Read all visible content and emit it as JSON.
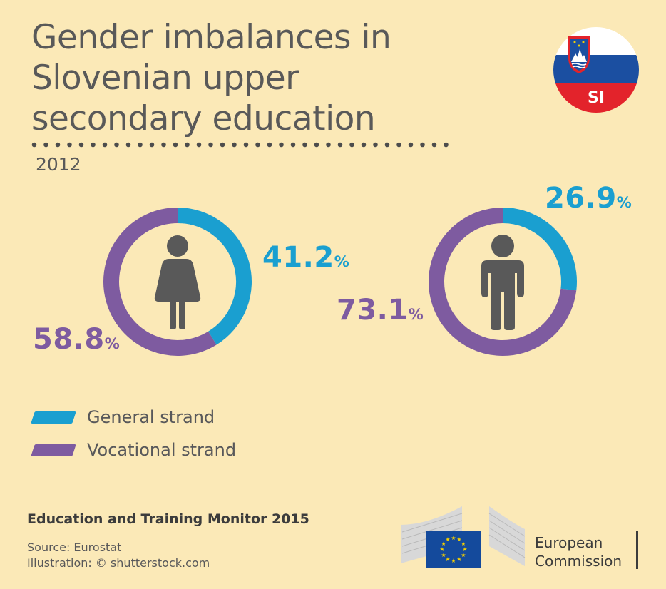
{
  "title": {
    "main": "Gender imbalances in Slovenian upper secondary education",
    "year": "2012"
  },
  "flag": {
    "code": "SI",
    "colors": {
      "white": "#ffffff",
      "blue": "#1b4fa1",
      "red": "#e3232b"
    }
  },
  "colors": {
    "general": "#1a9fd0",
    "vocational": "#7e5ba0",
    "figure": "#595959",
    "background": "#fbe9b7"
  },
  "chart_data": [
    {
      "type": "pie",
      "style": "donut",
      "figure_icon": "female-figure-icon",
      "slices": [
        {
          "name": "General strand",
          "value": 41.2,
          "label": "41.2",
          "unit": "%"
        },
        {
          "name": "Vocational strand",
          "value": 58.8,
          "label": "58.8",
          "unit": "%"
        }
      ]
    },
    {
      "type": "pie",
      "style": "donut",
      "figure_icon": "male-figure-icon",
      "slices": [
        {
          "name": "General strand",
          "value": 26.9,
          "label": "26.9",
          "unit": "%"
        },
        {
          "name": "Vocational strand",
          "value": 73.1,
          "label": "73.1",
          "unit": "%"
        }
      ]
    }
  ],
  "legend": [
    {
      "label": "General strand",
      "color": "#1a9fd0"
    },
    {
      "label": "Vocational strand",
      "color": "#7e5ba0"
    }
  ],
  "footer": {
    "publication": "Education and Training Monitor 2015",
    "source": "Source: Eurostat",
    "illustration": "Illustration: © shutterstock.com",
    "logo_text_line1": "European",
    "logo_text_line2": "Commission"
  }
}
